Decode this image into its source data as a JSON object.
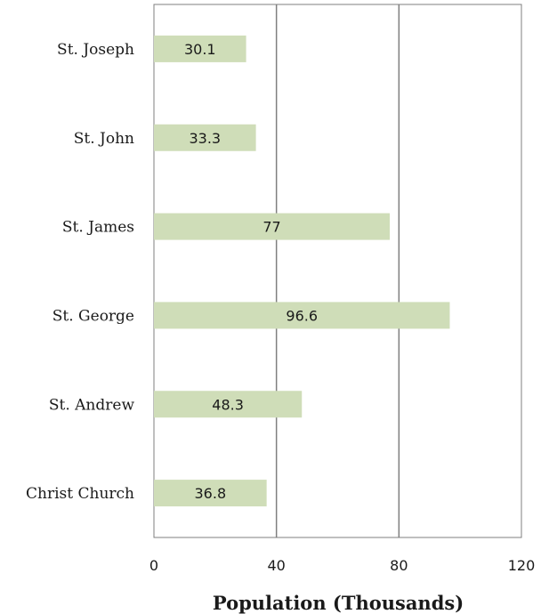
{
  "chart_data": {
    "type": "bar",
    "orientation": "horizontal",
    "categories": [
      "St. Joseph",
      "St. John",
      "St. James",
      "St. George",
      "St. Andrew",
      "Christ Church"
    ],
    "values": [
      30.1,
      33.3,
      77,
      96.6,
      48.3,
      36.8
    ],
    "data_labels": [
      "30.1",
      "33.3",
      "77",
      "96.6",
      "48.3",
      "36.8"
    ],
    "xlabel": "Population (Thousands)",
    "ylabel": "",
    "xlim": [
      0,
      120
    ],
    "xticks": [
      0,
      40,
      80,
      120
    ],
    "xtick_labels": [
      "0",
      "40",
      "80",
      "120"
    ],
    "grid": "vertical",
    "legend": "none",
    "bar_color": "#cfddb8",
    "grid_color": "#7f7f7f"
  }
}
